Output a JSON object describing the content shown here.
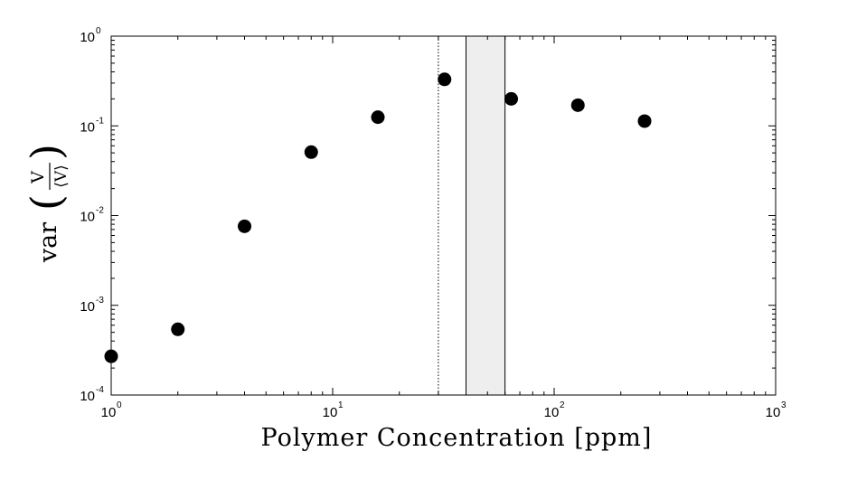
{
  "chart_data": {
    "type": "scatter",
    "xscale": "log",
    "yscale": "log",
    "xlim": [
      1,
      1000
    ],
    "ylim": [
      0.0001,
      1
    ],
    "xlabel": "Polymer Concentration [ppm]",
    "ylabel": {
      "prefix": "var",
      "numerator": "V",
      "denominator": "⟨V⟩"
    },
    "x_ticks": [
      {
        "base": "10",
        "exp": "0"
      },
      {
        "base": "10",
        "exp": "1"
      },
      {
        "base": "10",
        "exp": "2"
      },
      {
        "base": "10",
        "exp": "3"
      }
    ],
    "y_ticks": [
      {
        "base": "10",
        "exp": "-4"
      },
      {
        "base": "10",
        "exp": "-3"
      },
      {
        "base": "10",
        "exp": "-2"
      },
      {
        "base": "10",
        "exp": "-1"
      },
      {
        "base": "10",
        "exp": "0"
      }
    ],
    "points": [
      {
        "x": 1,
        "y": 0.00027
      },
      {
        "x": 2,
        "y": 0.00054
      },
      {
        "x": 4,
        "y": 0.0076
      },
      {
        "x": 8,
        "y": 0.051
      },
      {
        "x": 16,
        "y": 0.125
      },
      {
        "x": 32,
        "y": 0.33
      },
      {
        "x": 64,
        "y": 0.2
      },
      {
        "x": 128,
        "y": 0.17
      },
      {
        "x": 256,
        "y": 0.113
      }
    ],
    "vertical_line_x": 30,
    "shaded_band_x": [
      40,
      60
    ],
    "grid": false,
    "colors": {
      "marker": "#000000",
      "band_fill": "#eeeeee",
      "axis": "#000000"
    }
  }
}
